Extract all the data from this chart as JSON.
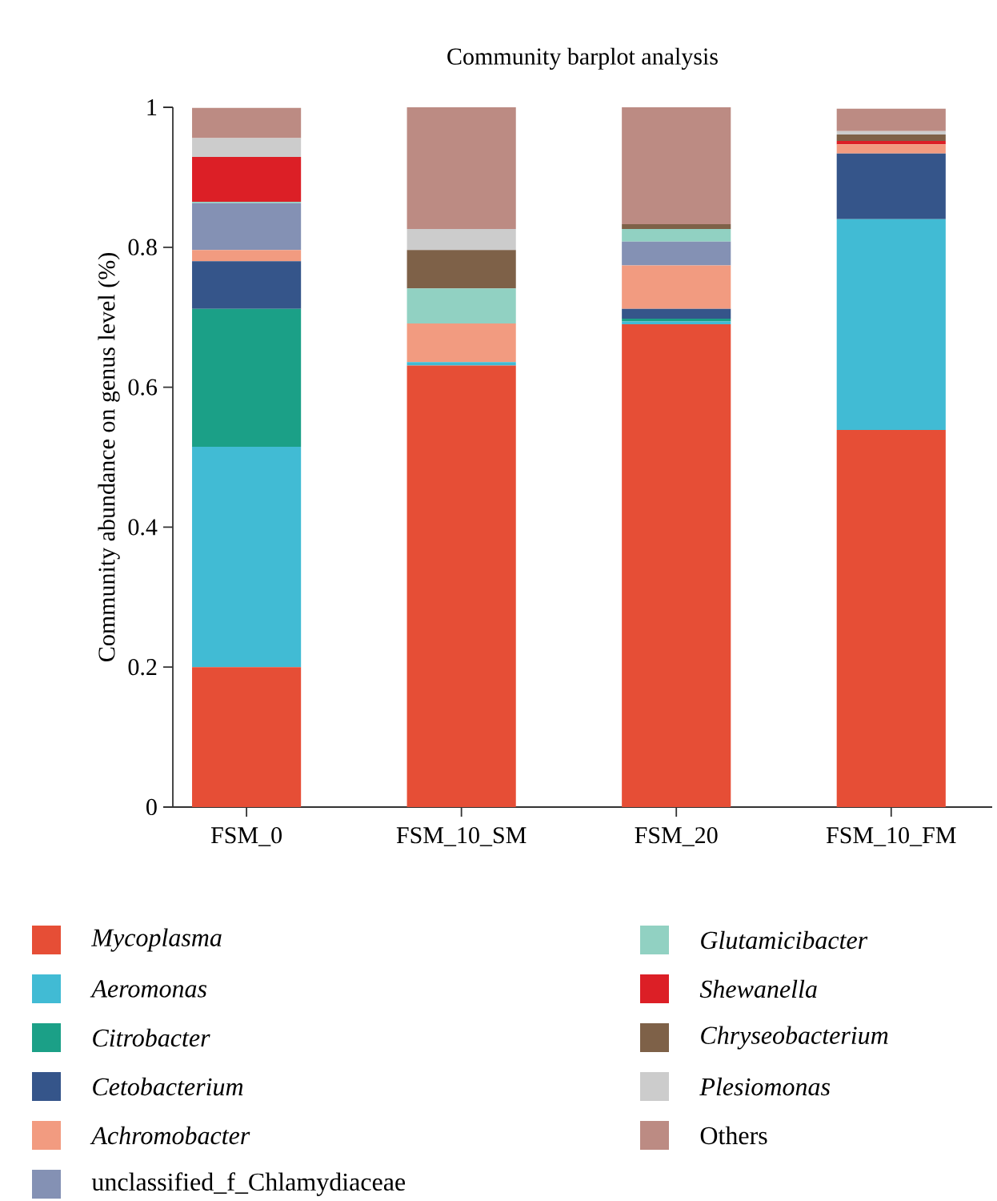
{
  "chart_data": {
    "type": "bar",
    "stacked": true,
    "title": "Community barplot analysis",
    "ylabel": "Community abundance on genus level (%)",
    "categories": [
      "FSM_0",
      "FSM_10_SM",
      "FSM_20",
      "FSM_10_FM"
    ],
    "ylim": [
      0,
      1
    ],
    "yticks": [
      0,
      0.2,
      0.4,
      0.6,
      0.8,
      1
    ],
    "grid": false,
    "legend": "bottom",
    "series": [
      {
        "name": "*Mycoplasma*",
        "color": "#e64e36",
        "values": [
          0.2,
          0.631,
          0.69,
          0.539
        ]
      },
      {
        "name": "*Aeromonas*",
        "color": "#41bbd4",
        "values": [
          0.315,
          0.005,
          0.004,
          0.301
        ]
      },
      {
        "name": "*Citrobacter*",
        "color": "#1ba087",
        "values": [
          0.197,
          0,
          0.004,
          0
        ]
      },
      {
        "name": "*Cetobacterium*",
        "color": "#35558a",
        "values": [
          0.068,
          0,
          0.014,
          0.094
        ]
      },
      {
        "name": "*Achromobacter*",
        "color": "#f29b80",
        "values": [
          0.016,
          0.055,
          0.062,
          0.013
        ]
      },
      {
        "name": "unclassified_f_Chlamydiaceae",
        "color": "#8491b4",
        "values": [
          0.067,
          0,
          0.034,
          0
        ]
      },
      {
        "name": "*Glutamicibacter*",
        "color": "#91d1c2",
        "values": [
          0.002,
          0.05,
          0.018,
          0
        ]
      },
      {
        "name": "*Shewanella*",
        "color": "#dc1f26",
        "values": [
          0.064,
          0,
          0,
          0.005
        ]
      },
      {
        "name": "*Chryseobacterium*",
        "color": "#7e6148",
        "values": [
          0,
          0.055,
          0.007,
          0.009
        ]
      },
      {
        "name": "*Plesiomonas*",
        "color": "#cccccc",
        "values": [
          0.027,
          0.03,
          0,
          0.005
        ]
      },
      {
        "name": "Others",
        "color": "#bc8b83",
        "values": [
          0.043,
          0.174,
          0.167,
          0.032
        ]
      }
    ]
  }
}
